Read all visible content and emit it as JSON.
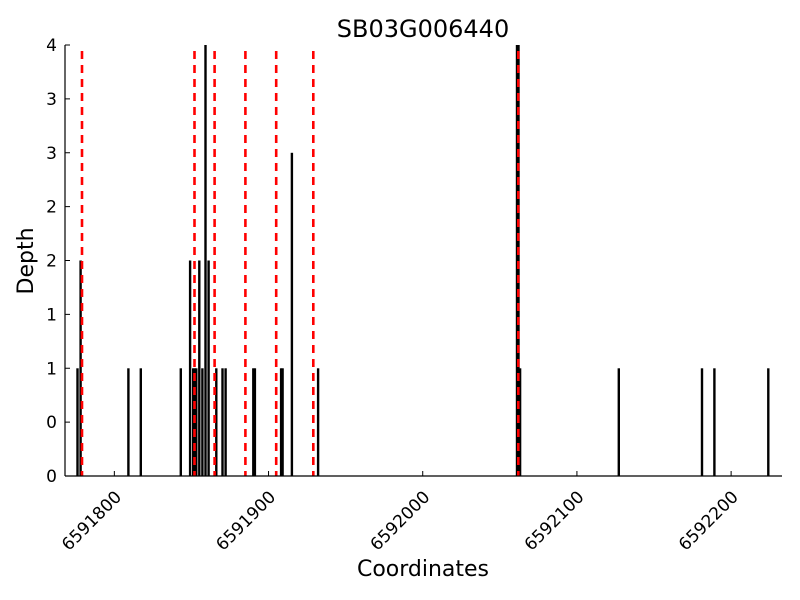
{
  "chart_data": {
    "type": "bar",
    "title": "SB03G006440",
    "xlabel": "Coordinates",
    "ylabel": "Depth",
    "xlim": [
      6591768,
      6592233
    ],
    "ylim": [
      0,
      4
    ],
    "x_ticks": [
      6591800,
      6591900,
      6592000,
      6592100,
      6592200
    ],
    "x_tick_labels": [
      "6591800",
      "6591900",
      "6592000",
      "6592100",
      "6592200"
    ],
    "y_ticks": [
      0,
      0.5,
      1,
      1.5,
      2,
      2.5,
      3,
      3.5,
      4
    ],
    "y_tick_labels": [
      "0",
      "0",
      "1",
      "1",
      "2",
      "2",
      "3",
      "3",
      "4"
    ],
    "grid": false,
    "series": [
      {
        "values": [
          {
            "x": 6591776,
            "y": 1
          },
          {
            "x": 6591778,
            "y": 2
          },
          {
            "x": 6591809,
            "y": 1
          },
          {
            "x": 6591817,
            "y": 1
          },
          {
            "x": 6591843,
            "y": 1
          },
          {
            "x": 6591849,
            "y": 2
          },
          {
            "x": 6591851,
            "y": 1
          },
          {
            "x": 6591852,
            "y": 1
          },
          {
            "x": 6591853,
            "y": 1
          },
          {
            "x": 6591855,
            "y": 2
          },
          {
            "x": 6591857,
            "y": 1
          },
          {
            "x": 6591859,
            "y": 4
          },
          {
            "x": 6591861,
            "y": 2
          },
          {
            "x": 6591866,
            "y": 1
          },
          {
            "x": 6591870,
            "y": 1
          },
          {
            "x": 6591872,
            "y": 1
          },
          {
            "x": 6591890,
            "y": 1
          },
          {
            "x": 6591891,
            "y": 1
          },
          {
            "x": 6591908,
            "y": 1
          },
          {
            "x": 6591909,
            "y": 1
          },
          {
            "x": 6591915,
            "y": 3
          },
          {
            "x": 6591932,
            "y": 1
          },
          {
            "x": 6592061,
            "y": 4
          },
          {
            "x": 6592062,
            "y": 4
          },
          {
            "x": 6592063,
            "y": 1
          },
          {
            "x": 6592127,
            "y": 1
          },
          {
            "x": 6592181,
            "y": 1
          },
          {
            "x": 6592189,
            "y": 1
          },
          {
            "x": 6592224,
            "y": 1
          }
        ]
      }
    ],
    "markers": [
      6591779,
      6591852,
      6591865,
      6591885,
      6591905,
      6591929,
      6592062
    ]
  },
  "colors": {
    "bar": "#000000",
    "marker": "#ff0000",
    "axis": "#000000"
  }
}
